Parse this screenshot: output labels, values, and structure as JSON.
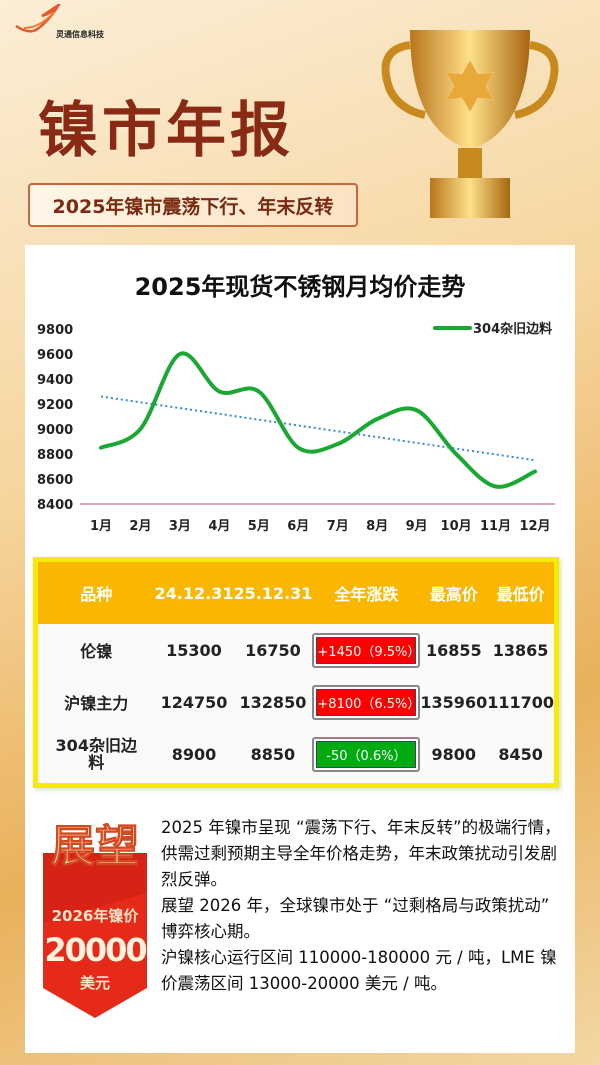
{
  "logo": {
    "name": "灵通信息科技"
  },
  "header": {
    "title": "镍市年报",
    "subtitle": "2025年镍市震荡下行、年末反转"
  },
  "chart_data": {
    "type": "line",
    "title": "2025年现货不锈钢月均价走势",
    "categories": [
      "1月",
      "2月",
      "3月",
      "4月",
      "5月",
      "6月",
      "7月",
      "8月",
      "9月",
      "10月",
      "11月",
      "12月"
    ],
    "series": [
      {
        "name": "304杂旧边料",
        "values": [
          8850,
          9000,
          9600,
          9300,
          9300,
          8850,
          8880,
          9080,
          9150,
          8800,
          8540,
          8660
        ],
        "color": "#1aa832"
      }
    ],
    "trendline": {
      "style": "dotted",
      "color": "#3a86e0",
      "start": 9260,
      "end": 8750
    },
    "ylim": [
      8400,
      9800
    ],
    "yticks": [
      8400,
      8600,
      8800,
      9000,
      9200,
      9400,
      9600,
      9800
    ],
    "legend": "top-right",
    "grid": false
  },
  "table": {
    "headers": [
      "品种",
      "24.12.31",
      "25.12.31",
      "全年涨跌",
      "最高价",
      "最低价"
    ],
    "rows": [
      {
        "name": "伦镍",
        "start": "15300",
        "end": "16750",
        "change": "+1450（9.5%）",
        "dir": "up",
        "high": "16855",
        "low": "13865"
      },
      {
        "name": "沪镍主力",
        "start": "124750",
        "end": "132850",
        "change": "+8100（6.5%）",
        "dir": "up",
        "high": "135960",
        "low": "111700"
      },
      {
        "name": "304杂旧边料",
        "start": "8900",
        "end": "8850",
        "change": "-50（0.6%）",
        "dir": "down",
        "high": "9800",
        "low": "8450"
      }
    ]
  },
  "colors": {
    "up": "#ff0000",
    "down": "#00aa10",
    "header": "#fbb700"
  },
  "outlook": {
    "badge_title": "展望",
    "badge_sub": "2026年镍价",
    "badge_value": "20000",
    "badge_unit": "美元",
    "paragraphs": [
      "2025 年镍市呈现 “震荡下行、年末反转”的极端行情，供需过剩预期主导全年价格走势，年末政策扰动引发剧烈反弹。",
      "展望 2026 年，全球镍市处于 “过剩格局与政策扰动” 博弈核心期。",
      "沪镍核心运行区间 110000-180000 元 / 吨，LME 镍价震荡区间 13000-20000 美元 / 吨。"
    ]
  }
}
